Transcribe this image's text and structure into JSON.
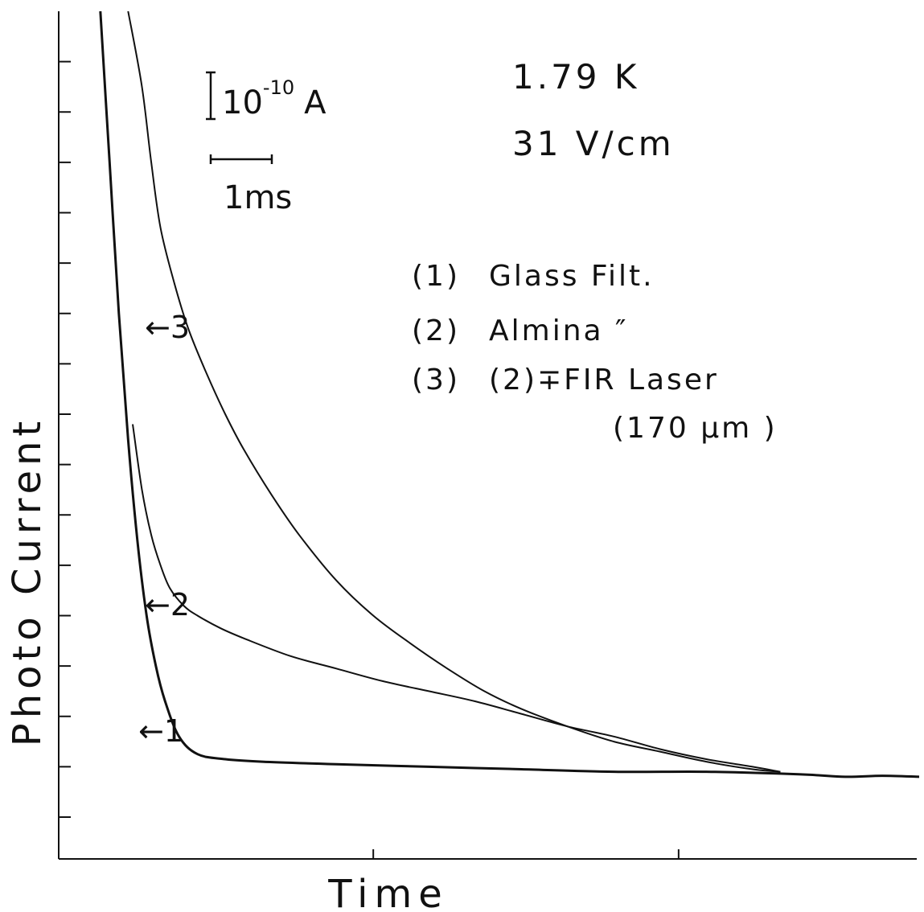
{
  "chart_data": {
    "type": "line",
    "title": "",
    "xlabel": "Time",
    "ylabel": "Photo Current",
    "xlim": [
      0,
      9.3
    ],
    "ylim": [
      0,
      16
    ],
    "scale_bars": {
      "current": {
        "exp": "-10",
        "unit": "A"
      },
      "time": {
        "text": "1ms"
      }
    },
    "conditions": [
      "1.79 K",
      "31 V/cm"
    ],
    "legend": [
      {
        "num": "(1)",
        "text": "Glass   Filt."
      },
      {
        "num": "(2)",
        "text": "Almina  ″"
      },
      {
        "num": "(3)",
        "text": "(2)∓FIR Laser"
      },
      {
        "num": "",
        "text": "(170 μm )"
      }
    ],
    "curve_labels": [
      "←1",
      "←2",
      "←3"
    ],
    "series": [
      {
        "id": "1",
        "x": [
          0.45,
          0.55,
          0.65,
          0.75,
          0.85,
          0.95,
          1.05,
          1.15,
          1.3,
          1.5,
          1.8,
          2.2,
          3,
          4,
          5,
          6,
          7,
          8,
          8.5,
          8.9,
          9.3
        ],
        "y": [
          16,
          13,
          10,
          7.5,
          5.5,
          4,
          3,
          2.3,
          1.6,
          1.25,
          1.15,
          1.1,
          1.05,
          1,
          0.95,
          0.9,
          0.9,
          0.85,
          0.8,
          0.82,
          0.8
        ]
      },
      {
        "id": "2",
        "x": [
          0.8,
          0.9,
          1.0,
          1.1,
          1.2,
          1.35,
          1.5,
          1.75,
          2,
          2.5,
          3,
          3.5,
          4,
          4.5,
          5,
          5.5,
          6,
          6.5,
          7,
          7.5,
          7.8
        ],
        "y": [
          7.8,
          6.5,
          5.6,
          5.0,
          4.55,
          4.2,
          4.0,
          3.75,
          3.55,
          3.2,
          2.95,
          2.7,
          2.5,
          2.3,
          2.05,
          1.8,
          1.6,
          1.35,
          1.15,
          1.0,
          0.9
        ]
      },
      {
        "id": "3",
        "x": [
          0.75,
          0.9,
          1.0,
          1.1,
          1.25,
          1.4,
          1.6,
          1.8,
          2,
          2.3,
          2.6,
          3,
          3.4,
          3.8,
          4.2,
          4.6,
          5,
          5.5,
          6,
          6.5,
          7,
          7.5,
          7.8
        ],
        "y": [
          16,
          14.5,
          13,
          11.7,
          10.6,
          9.7,
          8.8,
          8,
          7.3,
          6.4,
          5.6,
          4.7,
          4,
          3.45,
          2.95,
          2.5,
          2.15,
          1.8,
          1.5,
          1.3,
          1.1,
          0.95,
          0.9
        ]
      }
    ],
    "grid": false,
    "legend_position": "top-right"
  }
}
